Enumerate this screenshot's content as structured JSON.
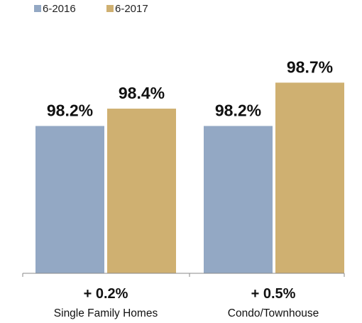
{
  "chart_data": {
    "type": "bar",
    "categories": [
      "Single Family Homes",
      "Condo/Townhouse"
    ],
    "series": [
      {
        "name": "6-2016",
        "values": [
          98.2,
          98.2
        ],
        "labels": [
          "98.2%",
          "98.2%"
        ],
        "color": "#93a8c4"
      },
      {
        "name": "6-2017",
        "values": [
          98.4,
          98.7
        ],
        "labels": [
          "98.4%",
          "98.7%"
        ],
        "color": "#cfb071"
      }
    ],
    "changes": [
      "+ 0.2%",
      "+ 0.5%"
    ],
    "ylim": [
      96.5,
      98.9
    ],
    "legend_position": "top-left",
    "grid": false,
    "title": "",
    "xlabel": "",
    "ylabel": ""
  }
}
